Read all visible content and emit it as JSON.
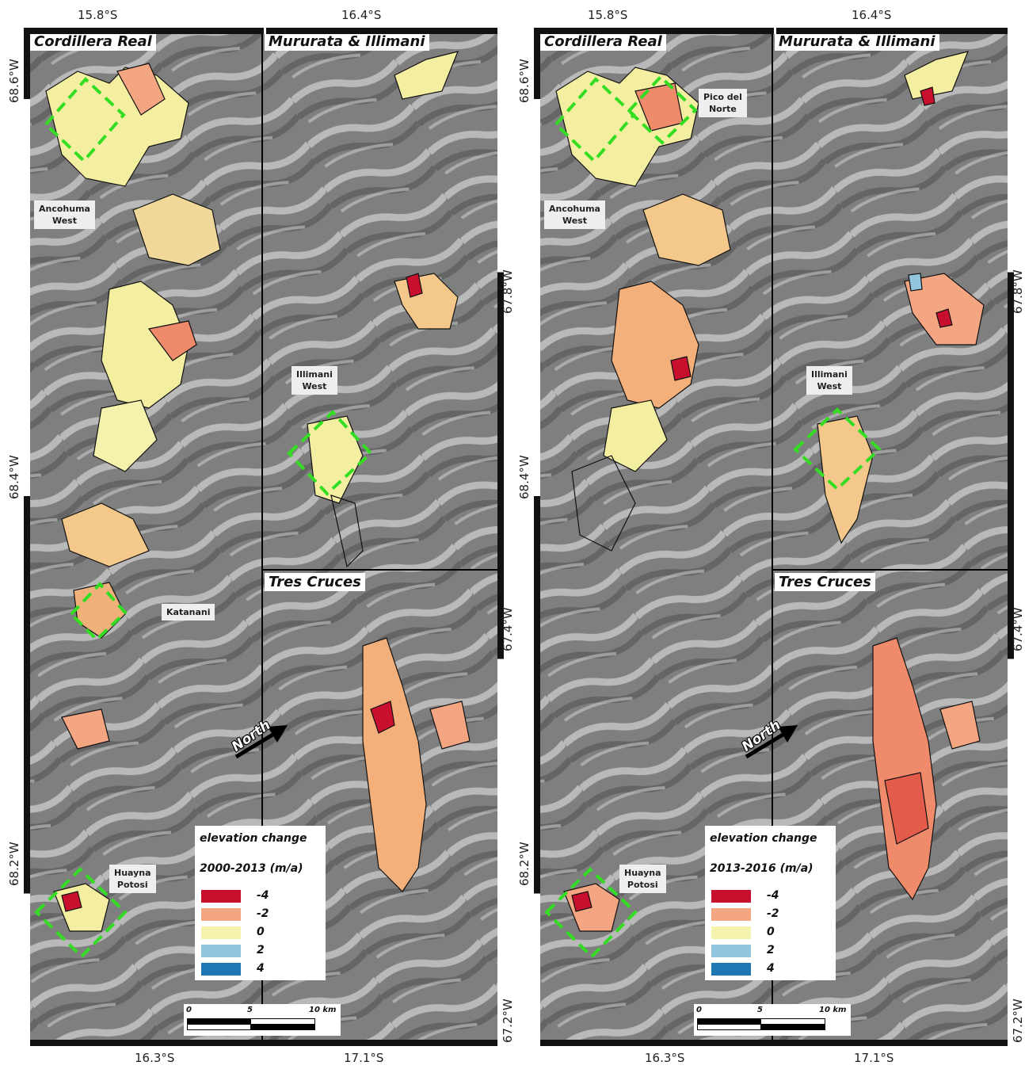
{
  "left_panel": {
    "top_ticks": [
      "15.8°S",
      "16.4°S"
    ],
    "bottom_ticks": [
      "16.3°S",
      "17.1°S"
    ],
    "left_ticks": [
      "68.6°W",
      "68.4°W",
      "68.2°W"
    ],
    "right_ticks": [
      "67.8°W",
      "67.4°W",
      "67.2°W"
    ],
    "titles": [
      "Cordillera Real",
      "Mururata & Illimani",
      "Tres Cruces"
    ],
    "places": {
      "ancohuma": [
        "Ancohuma",
        "West"
      ],
      "illimani": [
        "Illimani",
        "West"
      ],
      "katanani": [
        "Katanani"
      ],
      "huayna": [
        "Huayna",
        "Potosi"
      ]
    },
    "north": "North",
    "legend": {
      "title": "elevation change",
      "period": "2000-2013 (m/a)",
      "classes": [
        {
          "value": "-4",
          "color": "#c8102e"
        },
        {
          "value": "-2",
          "color": "#f4a582"
        },
        {
          "value": "0",
          "color": "#f5f2ae"
        },
        {
          "value": "2",
          "color": "#92c5de"
        },
        {
          "value": "4",
          "color": "#1f78b4"
        }
      ]
    },
    "scale": [
      "0",
      "5",
      "10 km"
    ]
  },
  "right_panel": {
    "top_ticks": [
      "15.8°S",
      "16.4°S"
    ],
    "bottom_ticks": [
      "16.3°S",
      "17.1°S"
    ],
    "left_ticks": [
      "68.6°W",
      "68.4°W",
      "68.2°W"
    ],
    "right_ticks": [
      "67.8°W",
      "67.4°W",
      "67.2°W"
    ],
    "titles": [
      "Cordillera Real",
      "Mururata & Illimani",
      "Tres Cruces"
    ],
    "places": {
      "ancohuma": [
        "Ancohuma",
        "West"
      ],
      "illimani": [
        "Illimani",
        "West"
      ],
      "pico": [
        "Pico del",
        "Norte"
      ],
      "huayna": [
        "Huayna",
        "Potosi"
      ]
    },
    "north": "North",
    "legend": {
      "title": "elevation change",
      "period": "2013-2016 (m/a)",
      "classes": [
        {
          "value": "-4",
          "color": "#c8102e"
        },
        {
          "value": "-2",
          "color": "#f4a582"
        },
        {
          "value": "0",
          "color": "#f5f2ae"
        },
        {
          "value": "2",
          "color": "#92c5de"
        },
        {
          "value": "4",
          "color": "#1f78b4"
        }
      ]
    },
    "scale": [
      "0",
      "5",
      "10 km"
    ]
  },
  "colors": {
    "aoi_box": "#33dd22",
    "glacier_outline": "#111111"
  }
}
